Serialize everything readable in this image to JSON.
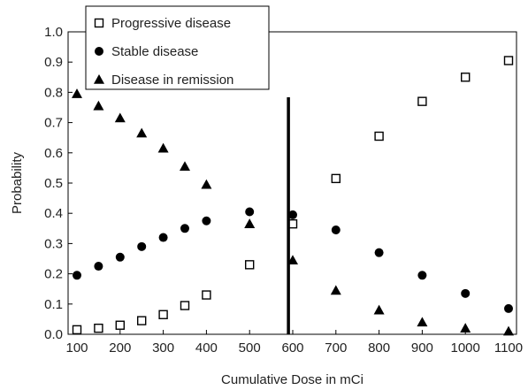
{
  "chart_data": {
    "type": "scatter",
    "title": "",
    "xlabel": "Cumulative Dose in mCi",
    "ylabel": "Probability",
    "xlim": [
      100,
      1100
    ],
    "ylim": [
      0,
      1.0
    ],
    "x_ticks": [
      "100",
      "200",
      "300",
      "400",
      "500",
      "600",
      "700",
      "800",
      "900",
      "1000",
      "1100"
    ],
    "y_ticks": [
      "0.0",
      "0.1",
      "0.2",
      "0.3",
      "0.4",
      "0.5",
      "0.6",
      "0.7",
      "0.8",
      "0.9",
      "1.0"
    ],
    "grid": false,
    "legend_position": "top-left",
    "vertical_line": {
      "x": 590
    },
    "series": [
      {
        "name": "Progressive disease",
        "marker": "open-square",
        "color": "#000000",
        "points": [
          [
            100,
            0.015
          ],
          [
            150,
            0.02
          ],
          [
            200,
            0.03
          ],
          [
            250,
            0.045
          ],
          [
            300,
            0.065
          ],
          [
            350,
            0.095
          ],
          [
            400,
            0.13
          ],
          [
            500,
            0.23
          ],
          [
            600,
            0.365
          ],
          [
            700,
            0.515
          ],
          [
            800,
            0.655
          ],
          [
            900,
            0.77
          ],
          [
            1000,
            0.85
          ],
          [
            1100,
            0.905
          ]
        ]
      },
      {
        "name": "Stable disease",
        "marker": "filled-circle",
        "color": "#000000",
        "points": [
          [
            100,
            0.195
          ],
          [
            150,
            0.225
          ],
          [
            200,
            0.255
          ],
          [
            250,
            0.29
          ],
          [
            300,
            0.32
          ],
          [
            350,
            0.35
          ],
          [
            400,
            0.375
          ],
          [
            500,
            0.405
          ],
          [
            600,
            0.395
          ],
          [
            700,
            0.345
          ],
          [
            800,
            0.27
          ],
          [
            900,
            0.195
          ],
          [
            1000,
            0.135
          ],
          [
            1100,
            0.085
          ]
        ]
      },
      {
        "name": "Disease in remission",
        "marker": "filled-triangle",
        "color": "#000000",
        "points": [
          [
            100,
            0.795
          ],
          [
            150,
            0.755
          ],
          [
            200,
            0.715
          ],
          [
            250,
            0.665
          ],
          [
            300,
            0.615
          ],
          [
            350,
            0.555
          ],
          [
            400,
            0.495
          ],
          [
            500,
            0.365
          ],
          [
            600,
            0.245
          ],
          [
            700,
            0.145
          ],
          [
            800,
            0.08
          ],
          [
            900,
            0.04
          ],
          [
            1000,
            0.02
          ],
          [
            1100,
            0.01
          ]
        ]
      }
    ]
  }
}
